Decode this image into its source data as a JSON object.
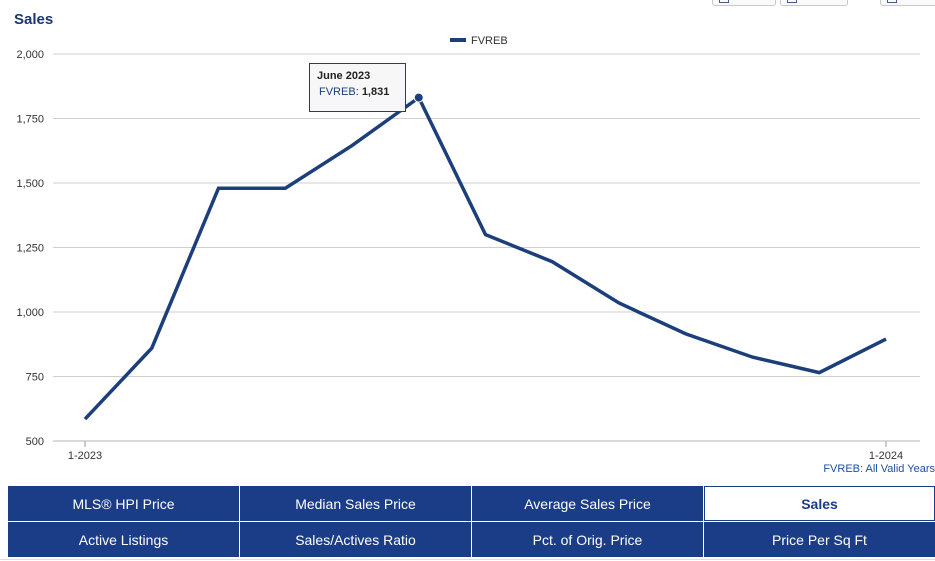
{
  "chart_data": {
    "type": "line",
    "title": "Sales",
    "x": [
      "1-2023",
      "2-2023",
      "3-2023",
      "4-2023",
      "5-2023",
      "6-2023",
      "7-2023",
      "8-2023",
      "9-2023",
      "10-2023",
      "11-2023",
      "12-2023",
      "1-2024"
    ],
    "x_tick_labels": [
      "1-2023",
      "1-2024"
    ],
    "series": [
      {
        "name": "FVREB",
        "color": "#1c3f7c",
        "values": [
          585,
          860,
          1480,
          1480,
          1645,
          1831,
          1300,
          1195,
          1035,
          915,
          825,
          765,
          895
        ]
      }
    ],
    "ylim": [
      500,
      2000
    ],
    "y_ticks": [
      500,
      750,
      1000,
      1250,
      1500,
      1750,
      2000
    ],
    "y_tick_labels": [
      "500",
      "750",
      "1,000",
      "1,250",
      "1,500",
      "1,750",
      "2,000"
    ],
    "grid": true,
    "legend": "top-center",
    "tooltip": {
      "title": "June 2023",
      "series": "FVREB",
      "value": "1,831"
    },
    "note": "FVREB: All Valid Years"
  },
  "tabs": [
    {
      "label": "MLS® HPI Price",
      "active": false
    },
    {
      "label": "Median Sales Price",
      "active": false
    },
    {
      "label": "Average Sales Price",
      "active": false
    },
    {
      "label": "Sales",
      "active": true
    },
    {
      "label": "Active Listings",
      "active": false
    },
    {
      "label": "Sales/Actives Ratio",
      "active": false
    },
    {
      "label": "Pct. of Orig. Price",
      "active": false
    },
    {
      "label": "Price Per Sq Ft",
      "active": false
    }
  ]
}
